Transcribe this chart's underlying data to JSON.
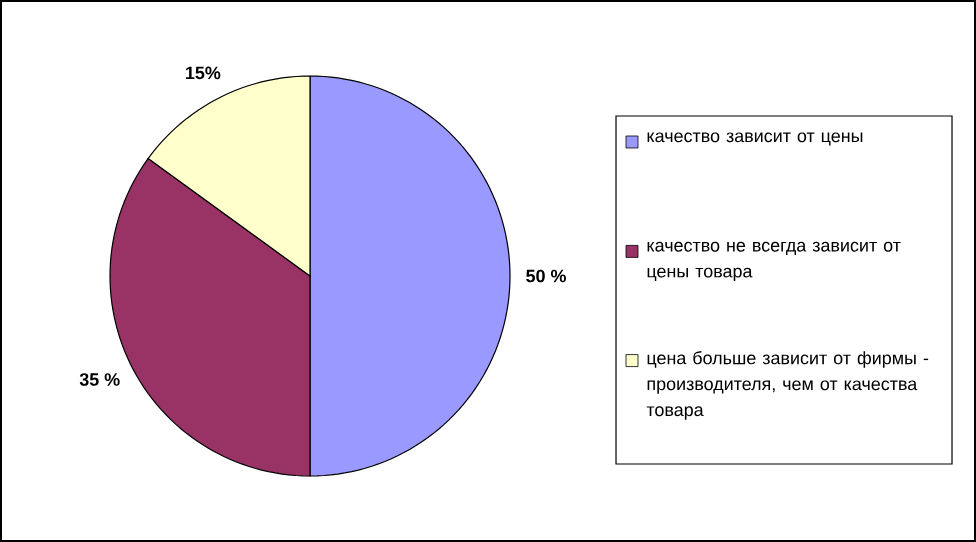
{
  "chart_data": {
    "type": "pie",
    "categories": [
      "качество зависит от цены",
      "качество не всегда зависит от цены товара",
      "цена больше зависит от фирмы - производителя, чем от качества товара"
    ],
    "values": [
      50,
      35,
      15
    ],
    "value_labels": [
      "50 %",
      "35 %",
      "15%"
    ],
    "colors": [
      "#9999ff",
      "#993366",
      "#ffffcc"
    ],
    "legend": "right"
  }
}
